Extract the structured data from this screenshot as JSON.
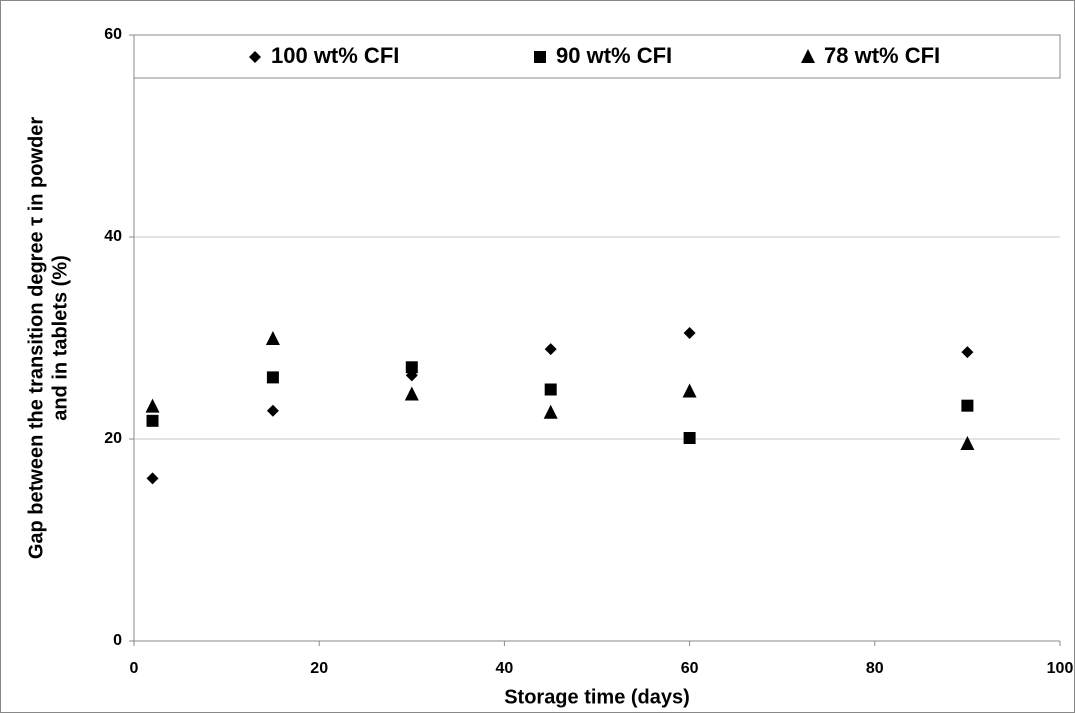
{
  "chart_data": {
    "type": "scatter",
    "x_label": "Storage time (days)",
    "y_label": [
      "Gap between the transition degree τ  in powder",
      "and in tablets (%)"
    ],
    "xlim": [
      0,
      100
    ],
    "xticks": [
      0,
      20,
      40,
      60,
      80,
      100
    ],
    "ylim": [
      0,
      60
    ],
    "yticks": [
      0,
      20,
      40,
      60
    ],
    "grid": true,
    "legend": "top",
    "x": [
      2,
      15,
      30,
      45,
      60,
      90
    ],
    "series": [
      {
        "name": "100 wt% CFI",
        "color": "#000000",
        "marker": "diamond",
        "values": [
          16.1,
          22.8,
          26.3,
          28.9,
          30.5,
          28.6
        ]
      },
      {
        "name": "90 wt% CFI",
        "color": "#000000",
        "marker": "square",
        "values": [
          21.8,
          26.1,
          27.1,
          24.9,
          20.1,
          23.3
        ]
      },
      {
        "name": "78 wt% CFI",
        "color": "#000000",
        "marker": "triangle",
        "values": [
          23.2,
          29.9,
          24.4,
          22.6,
          24.7,
          19.5
        ]
      }
    ]
  }
}
